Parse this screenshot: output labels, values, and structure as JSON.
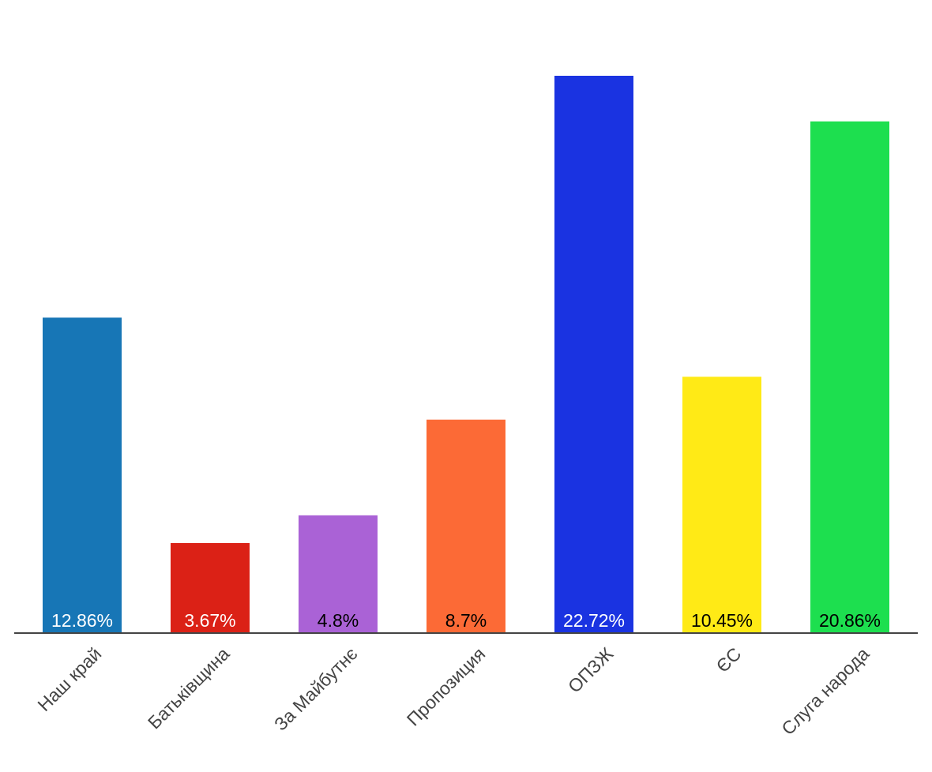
{
  "chart_data": {
    "type": "bar",
    "title": "",
    "xlabel": "",
    "ylabel": "",
    "ylim": [
      0,
      22.72
    ],
    "grid": false,
    "legend": "none",
    "categories": [
      "Наш край",
      "Батьківщина",
      "За Майбутнє",
      "Пропозиция",
      "ОПЗЖ",
      "ЄС",
      "Слуга народа"
    ],
    "values": [
      12.86,
      3.67,
      4.8,
      8.7,
      22.72,
      10.45,
      20.86
    ],
    "value_labels": [
      "12.86%",
      "3.67%",
      "4.8%",
      "8.7%",
      "22.72%",
      "10.45%",
      "20.86%"
    ],
    "colors": [
      "#1776b6",
      "#db2116",
      "#aa62d6",
      "#fc6a36",
      "#1a33e1",
      "#ffea16",
      "#1ddf4f"
    ],
    "label_colors": [
      "#ffffff",
      "#ffffff",
      "#000000",
      "#000000",
      "#ffffff",
      "#000000",
      "#000000"
    ],
    "axis_color": "#444444"
  }
}
